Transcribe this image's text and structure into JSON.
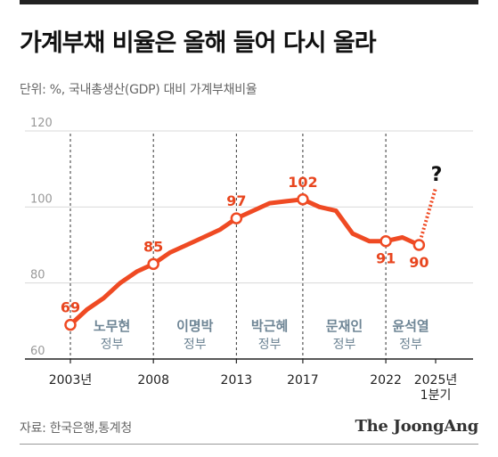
{
  "header": {
    "title": "가계부채 비율은 올해 들어 다시 올라",
    "subtitle": "단위: %, 국내총생산(GDP) 대비 가계부채비율"
  },
  "footer": {
    "source": "자료: 한국은행,통계청",
    "brand": "The JoongAng"
  },
  "colors": {
    "line": "#ef4a23",
    "forecast": "#ef4a23",
    "point_label": "#e8461f",
    "era_label": "#6e8595",
    "axis_text": "#999999"
  },
  "chart_data": {
    "type": "line",
    "title": "가계부채 비율은 올해 들어 다시 올라",
    "ylabel": "",
    "xlabel": "",
    "ylim": [
      60,
      120
    ],
    "yticks": [
      60,
      80,
      100,
      120
    ],
    "xlim": [
      2003,
      2025
    ],
    "x_tick_labels": [
      {
        "x": 2003,
        "lines": [
          "2003년"
        ]
      },
      {
        "x": 2008,
        "lines": [
          "2008"
        ]
      },
      {
        "x": 2013,
        "lines": [
          "2013"
        ]
      },
      {
        "x": 2017,
        "lines": [
          "2017"
        ]
      },
      {
        "x": 2022,
        "lines": [
          "2022"
        ]
      },
      {
        "x": 2025,
        "lines": [
          "2025년",
          "1분기"
        ]
      }
    ],
    "series": [
      {
        "values": [
          {
            "x": 2003,
            "y": 69
          },
          {
            "x": 2004,
            "y": 73
          },
          {
            "x": 2005,
            "y": 76
          },
          {
            "x": 2006,
            "y": 80
          },
          {
            "x": 2007,
            "y": 83
          },
          {
            "x": 2008,
            "y": 85
          },
          {
            "x": 2009,
            "y": 88
          },
          {
            "x": 2010,
            "y": 90
          },
          {
            "x": 2011,
            "y": 92
          },
          {
            "x": 2012,
            "y": 94
          },
          {
            "x": 2013,
            "y": 97
          },
          {
            "x": 2014,
            "y": 99
          },
          {
            "x": 2015,
            "y": 101
          },
          {
            "x": 2016,
            "y": 101.5
          },
          {
            "x": 2017,
            "y": 102
          },
          {
            "x": 2018,
            "y": 100
          },
          {
            "x": 2019,
            "y": 99
          },
          {
            "x": 2020,
            "y": 93
          },
          {
            "x": 2021,
            "y": 91
          },
          {
            "x": 2022,
            "y": 91
          },
          {
            "x": 2023,
            "y": 92
          },
          {
            "x": 2024,
            "y": 90
          }
        ]
      }
    ],
    "forecast": {
      "from": {
        "x": 2024,
        "y": 90
      },
      "to": {
        "x": 2025,
        "y": 105
      },
      "label": "?"
    },
    "point_labels": [
      {
        "x": 2003,
        "y": 69,
        "text": "69"
      },
      {
        "x": 2008,
        "y": 85,
        "text": "85"
      },
      {
        "x": 2013,
        "y": 97,
        "text": "97"
      },
      {
        "x": 2017,
        "y": 102,
        "text": "102"
      },
      {
        "x": 2022,
        "y": 91,
        "text": "91"
      },
      {
        "x": 2024,
        "y": 90,
        "text": "90"
      }
    ],
    "markers": [
      2003,
      2008,
      2013,
      2017,
      2022,
      2024
    ],
    "divider_years": [
      2003,
      2008,
      2013,
      2017,
      2022
    ],
    "eras": [
      {
        "name": "노무현",
        "suffix": "정부",
        "from": 2003,
        "to": 2008
      },
      {
        "name": "이명박",
        "suffix": "정부",
        "from": 2008,
        "to": 2013
      },
      {
        "name": "박근혜",
        "suffix": "정부",
        "from": 2013,
        "to": 2017
      },
      {
        "name": "문재인",
        "suffix": "정부",
        "from": 2017,
        "to": 2022
      },
      {
        "name": "윤석열",
        "suffix": "정부",
        "from": 2022,
        "to": 2025
      }
    ],
    "grid": true
  }
}
